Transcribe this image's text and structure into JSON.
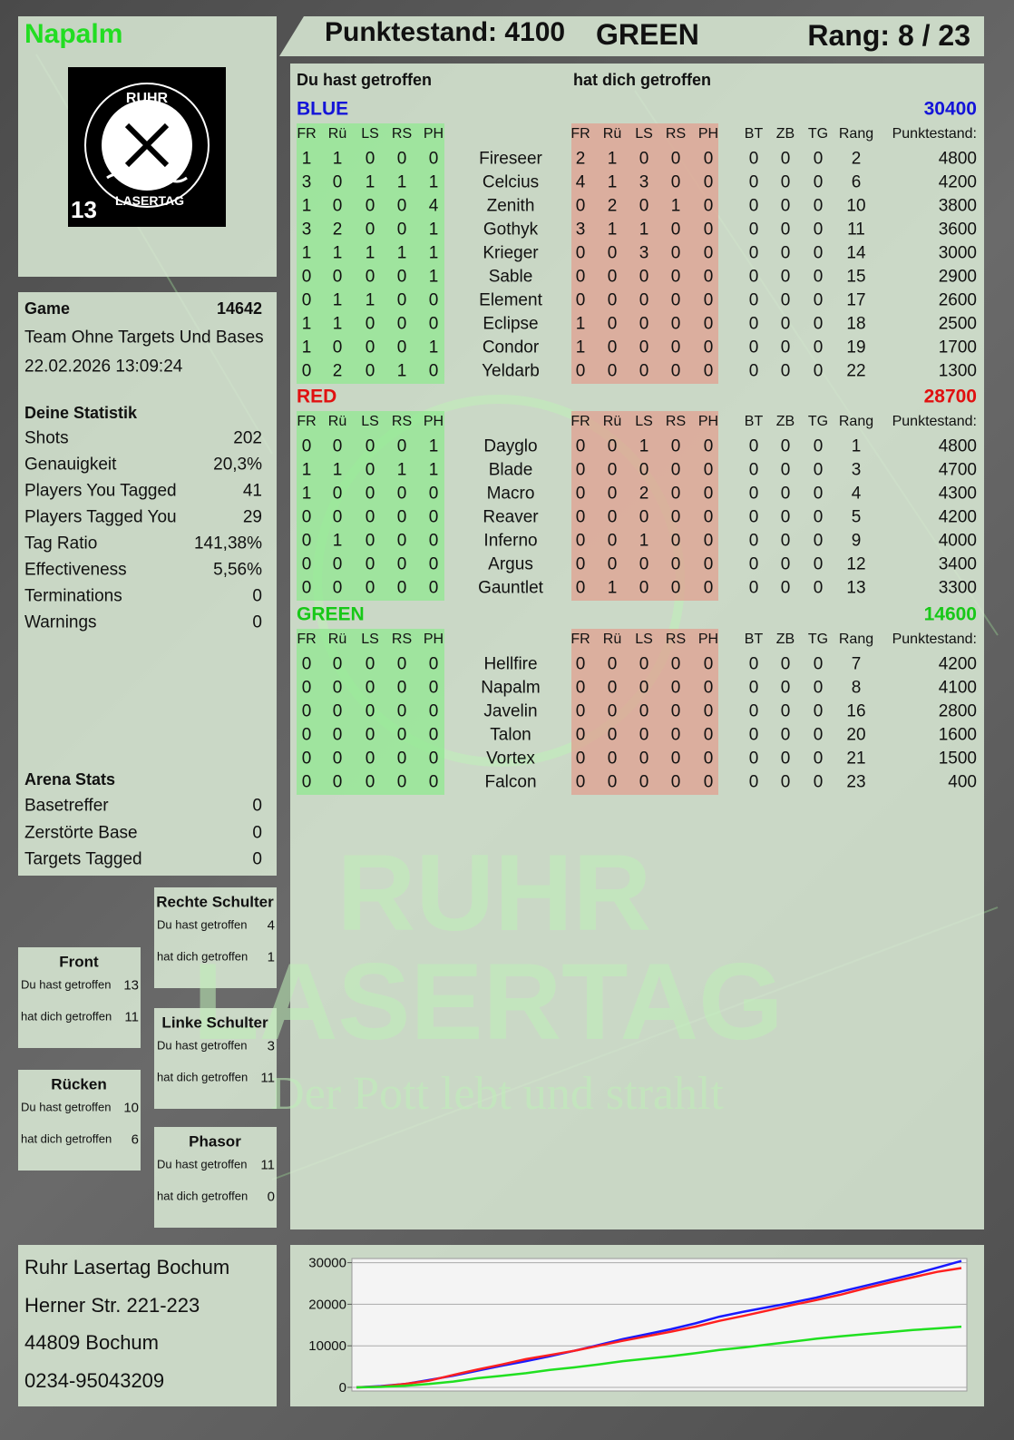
{
  "header": {
    "player": "Napalm",
    "score": "Punktestand: 4100",
    "team": "GREEN",
    "rank": "Rang: 8 / 23"
  },
  "logo": {
    "top": "RUHR",
    "bottom": "LASERTAG",
    "number": "13"
  },
  "game": {
    "label": "Game",
    "id": 14642,
    "mode": "Team Ohne Targets Und Bases",
    "date": "22.02.2026 13:09:24"
  },
  "stats": {
    "title": "Deine Statistik",
    "rows": [
      [
        "Shots",
        202
      ],
      [
        "Genauigkeit",
        "20,3%"
      ],
      [
        "Players You Tagged",
        41
      ],
      [
        "Players Tagged You",
        29
      ],
      [
        "Tag Ratio",
        "141,38%"
      ],
      [
        "Effectiveness",
        "5,56%"
      ],
      [
        "Terminations",
        0
      ],
      [
        "Warnings",
        0
      ]
    ]
  },
  "arena": {
    "title": "Arena Stats",
    "rows": [
      [
        "Basetreffer",
        0
      ],
      [
        "Zerstörte Base",
        0
      ],
      [
        "Targets Tagged",
        0
      ]
    ]
  },
  "zones": {
    "hit_label": "Du hast getroffen",
    "hit_by_label": "hat dich getroffen",
    "items": [
      {
        "name": "Front",
        "hit": 13,
        "hit_by": 11
      },
      {
        "name": "Rücken",
        "hit": 10,
        "hit_by": 6
      },
      {
        "name": "Rechte Schulter",
        "hit": 4,
        "hit_by": 1
      },
      {
        "name": "Linke Schulter",
        "hit": 3,
        "hit_by": 11
      },
      {
        "name": "Phasor",
        "hit": 11,
        "hit_by": 0
      }
    ]
  },
  "table": {
    "given_title": "Du hast getroffen",
    "received_title": "hat dich getroffen",
    "hit_columns": [
      "FR",
      "Rü",
      "LS",
      "RS",
      "PH"
    ],
    "extra_columns": [
      "BT",
      "ZB",
      "TG",
      "Rang",
      "Punktestand:"
    ],
    "teams": [
      {
        "name": "BLUE",
        "color": "#1414d8",
        "total": 30400,
        "players": [
          [
            "Fireseer",
            1,
            1,
            0,
            0,
            0,
            2,
            1,
            0,
            0,
            0,
            0,
            0,
            0,
            2,
            4800
          ],
          [
            "Celcius",
            3,
            0,
            1,
            1,
            1,
            4,
            1,
            3,
            0,
            0,
            0,
            0,
            0,
            6,
            4200
          ],
          [
            "Zenith",
            1,
            0,
            0,
            0,
            4,
            0,
            2,
            0,
            1,
            0,
            0,
            0,
            0,
            10,
            3800
          ],
          [
            "Gothyk",
            3,
            2,
            0,
            0,
            1,
            3,
            1,
            1,
            0,
            0,
            0,
            0,
            0,
            11,
            3600
          ],
          [
            "Krieger",
            1,
            1,
            1,
            1,
            1,
            0,
            0,
            3,
            0,
            0,
            0,
            0,
            0,
            14,
            3000
          ],
          [
            "Sable",
            0,
            0,
            0,
            0,
            1,
            0,
            0,
            0,
            0,
            0,
            0,
            0,
            0,
            15,
            2900
          ],
          [
            "Element",
            0,
            1,
            1,
            0,
            0,
            0,
            0,
            0,
            0,
            0,
            0,
            0,
            0,
            17,
            2600
          ],
          [
            "Eclipse",
            1,
            1,
            0,
            0,
            0,
            1,
            0,
            0,
            0,
            0,
            0,
            0,
            0,
            18,
            2500
          ],
          [
            "Condor",
            1,
            0,
            0,
            0,
            1,
            1,
            0,
            0,
            0,
            0,
            0,
            0,
            0,
            19,
            1700
          ],
          [
            "Yeldarb",
            0,
            2,
            0,
            1,
            0,
            0,
            0,
            0,
            0,
            0,
            0,
            0,
            0,
            22,
            1300
          ]
        ]
      },
      {
        "name": "RED",
        "color": "#e01010",
        "total": 28700,
        "players": [
          [
            "Dayglo",
            0,
            0,
            0,
            0,
            1,
            0,
            0,
            1,
            0,
            0,
            0,
            0,
            0,
            1,
            4800
          ],
          [
            "Blade",
            1,
            1,
            0,
            1,
            1,
            0,
            0,
            0,
            0,
            0,
            0,
            0,
            0,
            3,
            4700
          ],
          [
            "Macro",
            1,
            0,
            0,
            0,
            0,
            0,
            0,
            2,
            0,
            0,
            0,
            0,
            0,
            4,
            4300
          ],
          [
            "Reaver",
            0,
            0,
            0,
            0,
            0,
            0,
            0,
            0,
            0,
            0,
            0,
            0,
            0,
            5,
            4200
          ],
          [
            "Inferno",
            0,
            1,
            0,
            0,
            0,
            0,
            0,
            1,
            0,
            0,
            0,
            0,
            0,
            9,
            4000
          ],
          [
            "Argus",
            0,
            0,
            0,
            0,
            0,
            0,
            0,
            0,
            0,
            0,
            0,
            0,
            0,
            12,
            3400
          ],
          [
            "Gauntlet",
            0,
            0,
            0,
            0,
            0,
            0,
            1,
            0,
            0,
            0,
            0,
            0,
            0,
            13,
            3300
          ]
        ]
      },
      {
        "name": "GREEN",
        "color": "#18c818",
        "total": 14600,
        "players": [
          [
            "Hellfire",
            0,
            0,
            0,
            0,
            0,
            0,
            0,
            0,
            0,
            0,
            0,
            0,
            0,
            7,
            4200
          ],
          [
            "Napalm",
            0,
            0,
            0,
            0,
            0,
            0,
            0,
            0,
            0,
            0,
            0,
            0,
            0,
            8,
            4100
          ],
          [
            "Javelin",
            0,
            0,
            0,
            0,
            0,
            0,
            0,
            0,
            0,
            0,
            0,
            0,
            0,
            16,
            2800
          ],
          [
            "Talon",
            0,
            0,
            0,
            0,
            0,
            0,
            0,
            0,
            0,
            0,
            0,
            0,
            0,
            20,
            1600
          ],
          [
            "Vortex",
            0,
            0,
            0,
            0,
            0,
            0,
            0,
            0,
            0,
            0,
            0,
            0,
            0,
            21,
            1500
          ],
          [
            "Falcon",
            0,
            0,
            0,
            0,
            0,
            0,
            0,
            0,
            0,
            0,
            0,
            0,
            0,
            23,
            400
          ]
        ]
      }
    ]
  },
  "watermark": {
    "top": "RUHR",
    "bottom": "LASERTAG",
    "slogan": "Der Pott lebt und strahlt"
  },
  "address": [
    "Ruhr Lasertag Bochum",
    "Herner Str. 221-223",
    "44809 Bochum",
    "0234-95043209"
  ],
  "chart_data": {
    "type": "line",
    "ylim": [
      0,
      31000
    ],
    "yticks": [
      0,
      10000,
      20000,
      30000
    ],
    "grid": true,
    "series": [
      {
        "color": "#1a1aff",
        "values": [
          0,
          300,
          800,
          1800,
          2800,
          4000,
          5200,
          6300,
          7500,
          8800,
          10200,
          11600,
          12800,
          14000,
          15400,
          17000,
          18200,
          19300,
          20400,
          21600,
          23000,
          24400,
          25800,
          27200,
          28800,
          30400
        ]
      },
      {
        "color": "#ff2020",
        "values": [
          0,
          200,
          800,
          1600,
          3000,
          4300,
          5500,
          6800,
          7800,
          8800,
          10000,
          11200,
          12300,
          13400,
          14600,
          16000,
          17200,
          18500,
          19800,
          21000,
          22300,
          23800,
          25200,
          26500,
          27800,
          28700
        ]
      },
      {
        "color": "#20e020",
        "values": [
          0,
          100,
          400,
          800,
          1400,
          2200,
          2800,
          3400,
          4200,
          4800,
          5500,
          6300,
          6900,
          7500,
          8200,
          9000,
          9600,
          10300,
          11000,
          11700,
          12300,
          12800,
          13300,
          13800,
          14200,
          14600
        ]
      }
    ]
  }
}
